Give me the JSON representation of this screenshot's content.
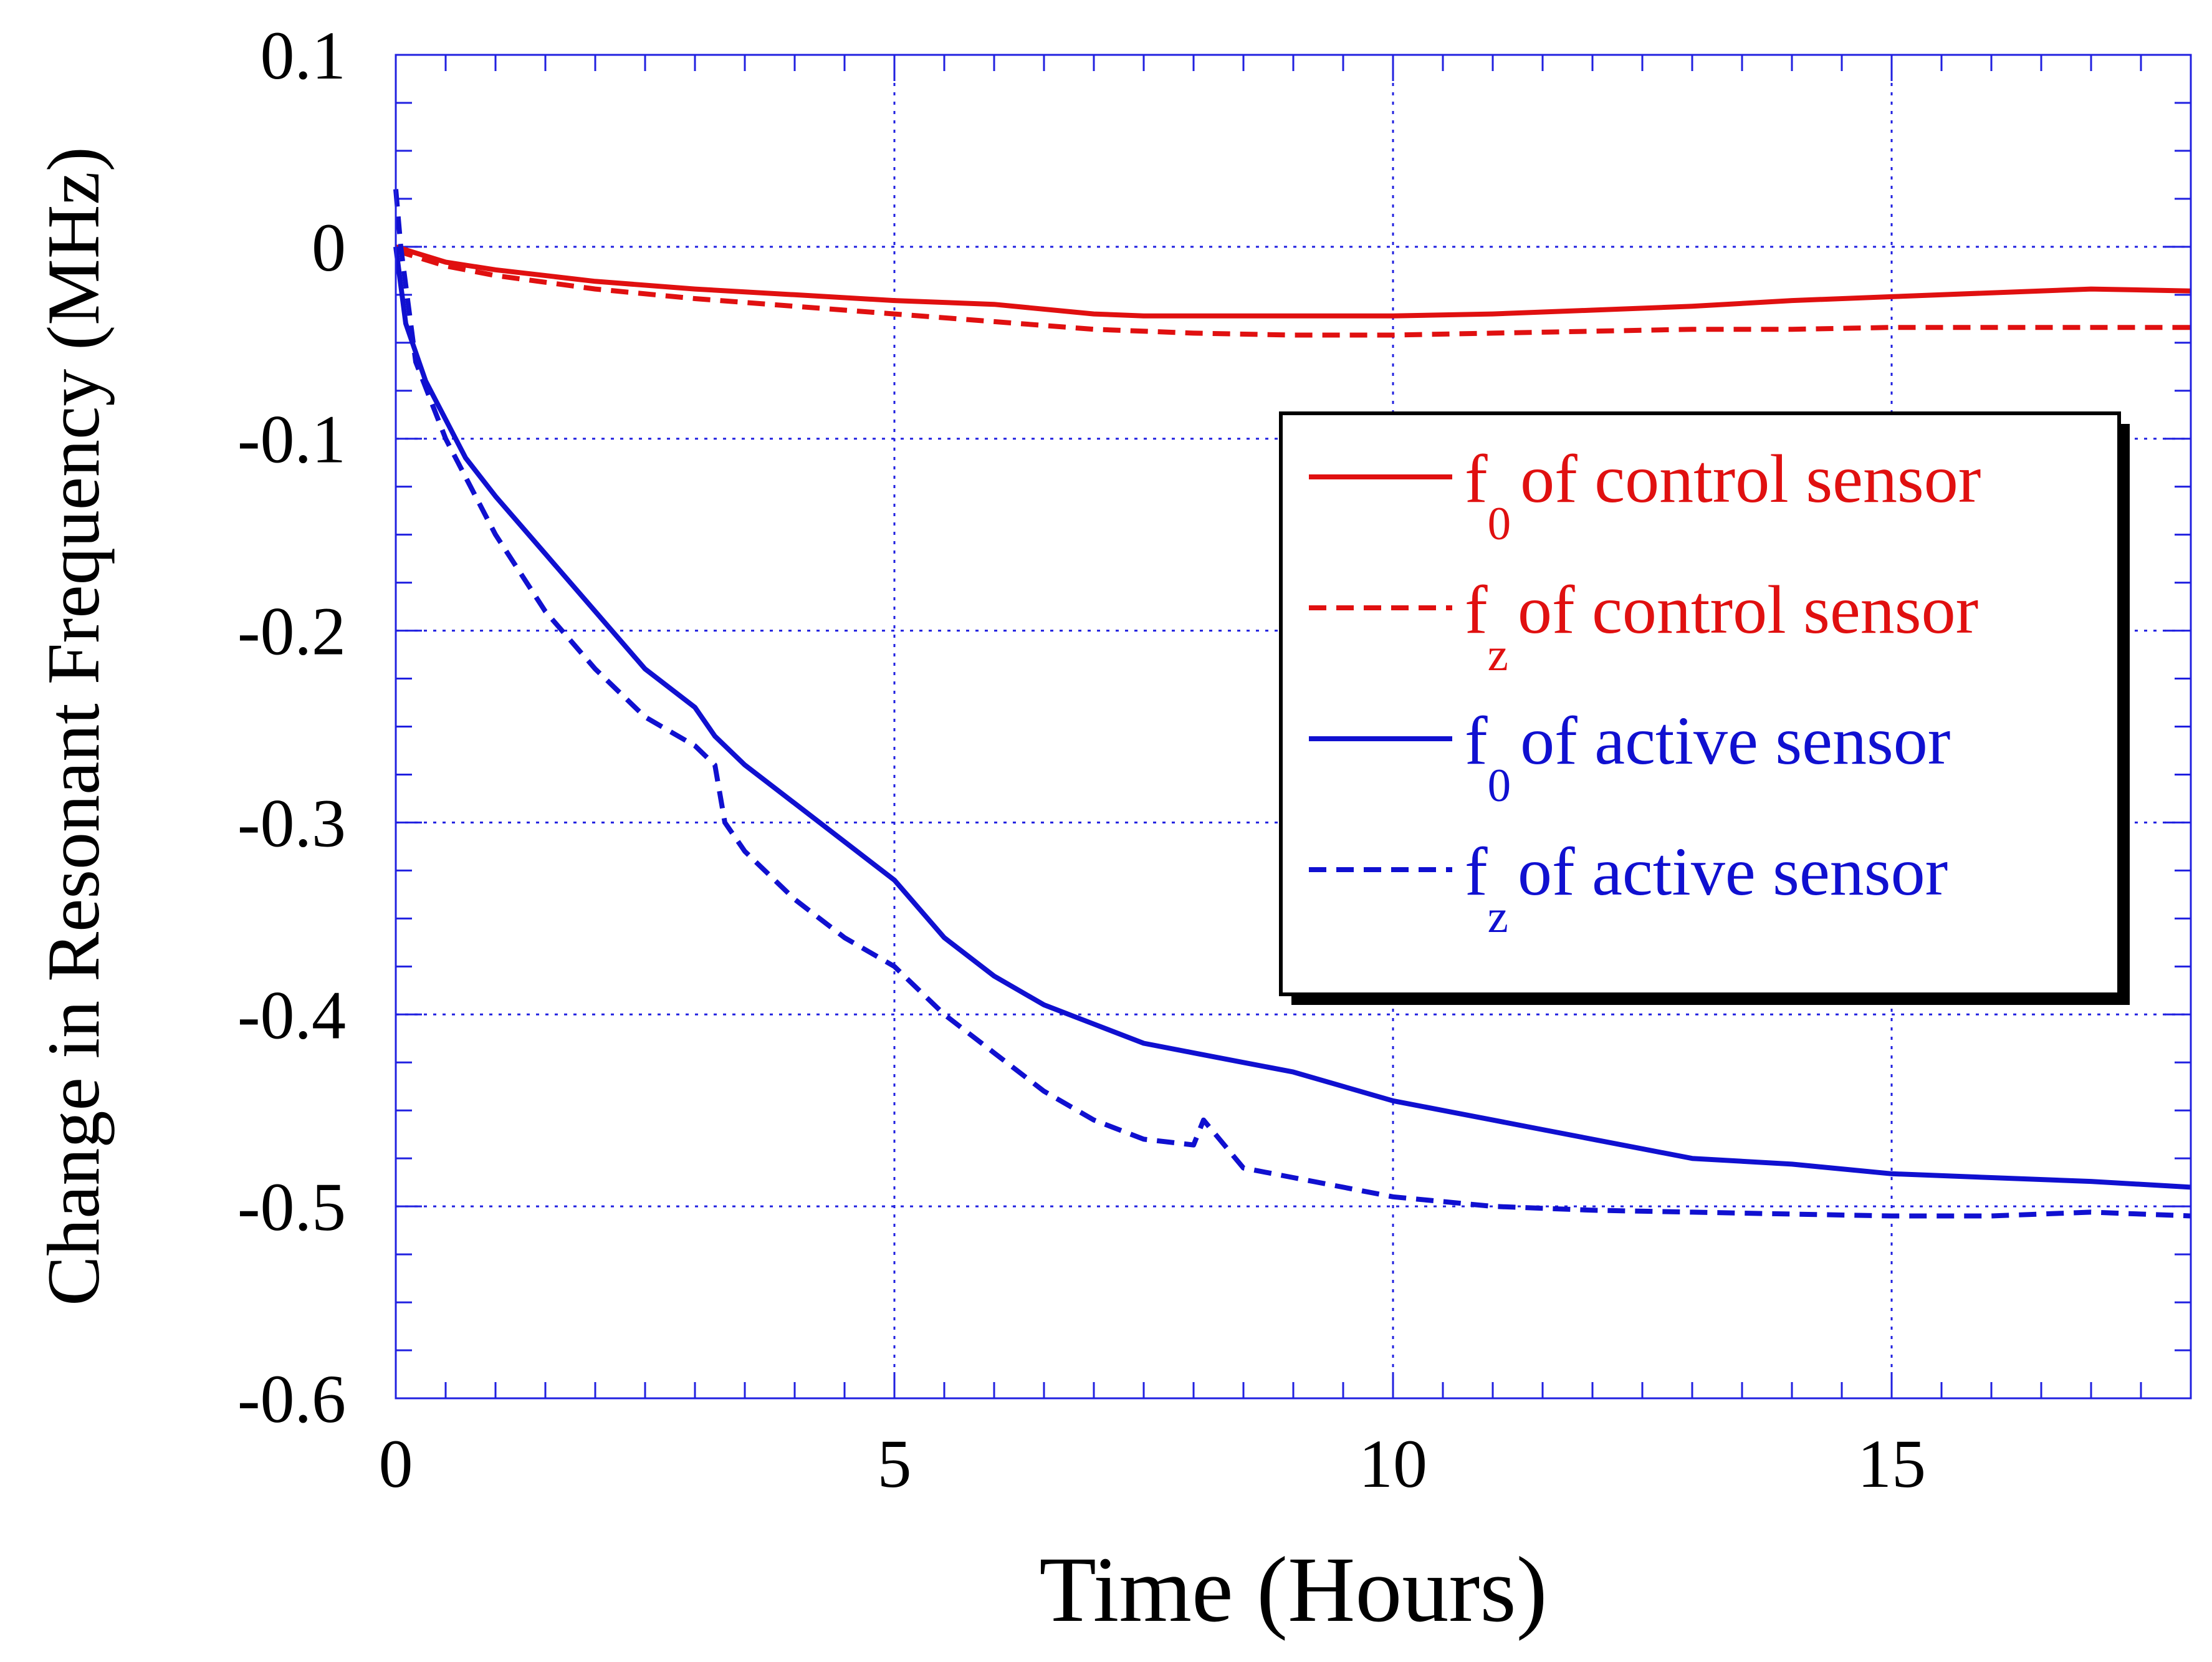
{
  "chart_data": {
    "type": "line",
    "xlabel": "Time (Hours)",
    "ylabel": "Change in Resonant Frequency (MHz)",
    "xlim": [
      0,
      18
    ],
    "ylim": [
      -0.6,
      0.1
    ],
    "xticks": [
      0,
      5,
      10,
      15
    ],
    "yticks": [
      0.1,
      0,
      -0.1,
      -0.2,
      -0.3,
      -0.4,
      -0.5,
      -0.6
    ],
    "xtick_labels": [
      "0",
      "5",
      "10",
      "15"
    ],
    "ytick_labels": [
      "0.1",
      "0",
      "-0.1",
      "-0.2",
      "-0.3",
      "-0.4",
      "-0.5",
      "-0.6"
    ],
    "grid": true,
    "legend_position": "right",
    "colors": {
      "red": "#e01010",
      "blue": "#1010d0",
      "grid": "#2020e0"
    },
    "series": [
      {
        "name": "f0 of control sensor",
        "legend": {
          "symbol": "f",
          "sub": "0",
          "text": "of control sensor"
        },
        "color": "#e01010",
        "dash": "solid",
        "x": [
          0,
          0.5,
          1,
          2,
          3,
          4,
          5,
          6,
          7,
          7.5,
          8,
          9,
          10,
          11,
          12,
          13,
          14,
          15,
          16,
          17,
          18
        ],
        "y": [
          0,
          -0.008,
          -0.012,
          -0.018,
          -0.022,
          -0.025,
          -0.028,
          -0.03,
          -0.035,
          -0.036,
          -0.036,
          -0.036,
          -0.036,
          -0.035,
          -0.033,
          -0.031,
          -0.028,
          -0.026,
          -0.024,
          -0.022,
          -0.023
        ]
      },
      {
        "name": "fz of control sensor",
        "legend": {
          "symbol": "f",
          "sub": "z",
          "text": "of control sensor"
        },
        "color": "#e01010",
        "dash": "dashed",
        "x": [
          0,
          0.5,
          1,
          2,
          3,
          4,
          5,
          6,
          7,
          8,
          9,
          10,
          11,
          12,
          13,
          14,
          15,
          16,
          17,
          18
        ],
        "y": [
          -0.002,
          -0.01,
          -0.015,
          -0.022,
          -0.027,
          -0.031,
          -0.035,
          -0.039,
          -0.043,
          -0.045,
          -0.046,
          -0.046,
          -0.045,
          -0.044,
          -0.043,
          -0.043,
          -0.042,
          -0.042,
          -0.042,
          -0.042
        ]
      },
      {
        "name": "f0 of active sensor",
        "legend": {
          "symbol": "f",
          "sub": "0",
          "text": "of active sensor"
        },
        "color": "#1010d0",
        "dash": "solid",
        "x": [
          0,
          0.1,
          0.3,
          0.5,
          0.7,
          1,
          1.5,
          2,
          2.5,
          3,
          3.2,
          3.5,
          4,
          4.5,
          5,
          5.5,
          6,
          6.5,
          7,
          7.5,
          8,
          8.5,
          9,
          10,
          11,
          11.5,
          12,
          12.5,
          13,
          14,
          15,
          16,
          17,
          18
        ],
        "y": [
          0,
          -0.04,
          -0.07,
          -0.09,
          -0.11,
          -0.13,
          -0.16,
          -0.19,
          -0.22,
          -0.24,
          -0.255,
          -0.27,
          -0.29,
          -0.31,
          -0.33,
          -0.36,
          -0.38,
          -0.395,
          -0.405,
          -0.415,
          -0.42,
          -0.425,
          -0.43,
          -0.445,
          -0.455,
          -0.46,
          -0.465,
          -0.47,
          -0.475,
          -0.478,
          -0.483,
          -0.485,
          -0.487,
          -0.49
        ]
      },
      {
        "name": "fz of active sensor",
        "legend": {
          "symbol": "f",
          "sub": "z",
          "text": "of active sensor"
        },
        "color": "#1010d0",
        "dash": "dashed",
        "x": [
          0,
          0.05,
          0.2,
          0.5,
          0.7,
          1,
          1.5,
          2,
          2.5,
          3,
          3.2,
          3.3,
          3.5,
          4,
          4.5,
          5,
          5.5,
          6,
          6.5,
          7,
          7.5,
          8,
          8.1,
          8.5,
          9,
          10,
          11,
          12,
          13,
          14,
          15,
          16,
          17,
          18
        ],
        "y": [
          0.03,
          0,
          -0.06,
          -0.1,
          -0.12,
          -0.15,
          -0.19,
          -0.22,
          -0.245,
          -0.26,
          -0.27,
          -0.3,
          -0.315,
          -0.34,
          -0.36,
          -0.375,
          -0.4,
          -0.42,
          -0.44,
          -0.455,
          -0.465,
          -0.468,
          -0.455,
          -0.48,
          -0.485,
          -0.495,
          -0.5,
          -0.502,
          -0.503,
          -0.504,
          -0.505,
          -0.505,
          -0.503,
          -0.505
        ]
      }
    ]
  }
}
